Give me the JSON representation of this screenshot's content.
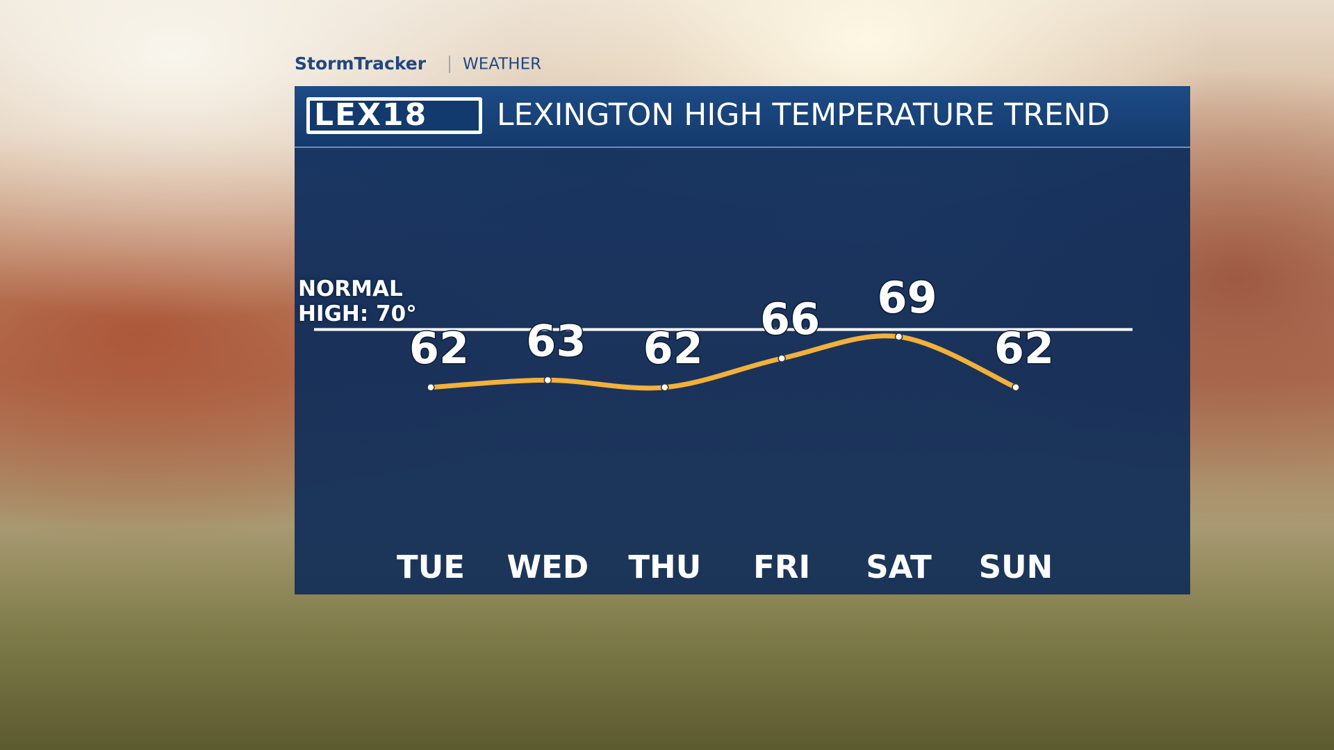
{
  "chart_data": {
    "type": "line",
    "brand": "StormTracker",
    "section": "WEATHER",
    "logo": "LEX18",
    "title": "LEXINGTON HIGH TEMPERATURE TREND",
    "categories": [
      "TUE",
      "WED",
      "THU",
      "FRI",
      "SAT",
      "SUN"
    ],
    "values": [
      62,
      63,
      62,
      66,
      69,
      62
    ],
    "color": "#f2b13a",
    "normal": {
      "label": "NORMAL HIGH: 70°",
      "value": 70
    },
    "ylim": [
      40,
      95
    ]
  }
}
